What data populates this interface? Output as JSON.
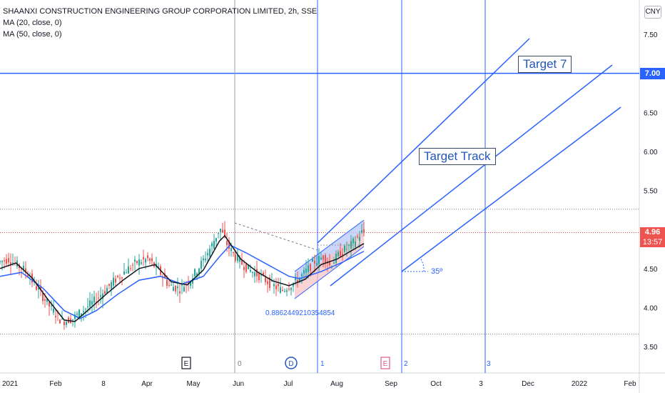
{
  "header": {
    "title": "SHAANXI CONSTRUCTION ENGINEERING GROUP CORPORATION LIMITED, 2h, SSE",
    "indicators": [
      "MA (20, close, 0)",
      "MA (50, close, 0)"
    ],
    "currency": "CNY"
  },
  "colors": {
    "blue": "#2962ff",
    "up": "#26a69a",
    "down": "#ef5350",
    "ma20": "#131722",
    "ma50": "#2962ff",
    "channel_fill": "#b3c3f7",
    "channel_lower_fill": "#f8c2c2",
    "price_label_bg": "#ef5350",
    "target_label_bg": "#2962ff"
  },
  "annotations": {
    "target7": "Target 7",
    "target_track": "Target Track",
    "angle": "35º",
    "fib_ratio": "0.8862449210354854",
    "cycle_labels": [
      "0",
      "1",
      "2",
      "3"
    ],
    "event_markers": [
      "E",
      "D",
      "E"
    ]
  },
  "price_labels": {
    "current_price": "4.96",
    "countdown": "13:57",
    "target_price": "7.00"
  },
  "chart_data": {
    "type": "candlestick",
    "title": "SHAANXI CONSTRUCTION ENGINEERING GROUP CORPORATION LIMITED, 2h, SSE",
    "x_ticks": [
      "2021",
      "Feb",
      "8",
      "Apr",
      "May",
      "Jun",
      "Jul",
      "Aug",
      "Sep",
      "Oct",
      "3",
      "Dec",
      "2022",
      "Feb"
    ],
    "y_ticks": [
      "7.50",
      "7.00",
      "6.50",
      "6.00",
      "5.50",
      "5.00",
      "4.50",
      "4.00",
      "3.50"
    ],
    "ylim": [
      3.2,
      7.75
    ],
    "price_path": [
      {
        "t": 0,
        "p": 4.58
      },
      {
        "t": 2,
        "p": 4.62
      },
      {
        "t": 5,
        "p": 4.48
      },
      {
        "t": 8,
        "p": 4.18
      },
      {
        "t": 10,
        "p": 3.98
      },
      {
        "t": 12,
        "p": 3.82
      },
      {
        "t": 14,
        "p": 3.86
      },
      {
        "t": 16,
        "p": 3.97
      },
      {
        "t": 18,
        "p": 4.08
      },
      {
        "t": 20,
        "p": 4.22
      },
      {
        "t": 22,
        "p": 4.36
      },
      {
        "t": 24,
        "p": 4.48
      },
      {
        "t": 26,
        "p": 4.58
      },
      {
        "t": 28,
        "p": 4.62
      },
      {
        "t": 30,
        "p": 4.48
      },
      {
        "t": 32,
        "p": 4.28
      },
      {
        "t": 34,
        "p": 4.24
      },
      {
        "t": 36,
        "p": 4.36
      },
      {
        "t": 38,
        "p": 4.56
      },
      {
        "t": 40,
        "p": 4.8
      },
      {
        "t": 41.5,
        "p": 5.02
      },
      {
        "t": 43,
        "p": 4.78
      },
      {
        "t": 45,
        "p": 4.6
      },
      {
        "t": 47,
        "p": 4.48
      },
      {
        "t": 49,
        "p": 4.4
      },
      {
        "t": 51,
        "p": 4.3
      },
      {
        "t": 53,
        "p": 4.22
      },
      {
        "t": 55,
        "p": 4.3
      },
      {
        "t": 57,
        "p": 4.42
      },
      {
        "t": 59,
        "p": 4.58
      },
      {
        "t": 61,
        "p": 4.66
      },
      {
        "t": 62,
        "p": 4.54
      },
      {
        "t": 64,
        "p": 4.7
      },
      {
        "t": 66,
        "p": 4.8
      },
      {
        "t": 68,
        "p": 4.96
      }
    ],
    "ma20_path": [
      {
        "t": 0,
        "p": 4.5
      },
      {
        "t": 3,
        "p": 4.57
      },
      {
        "t": 6,
        "p": 4.38
      },
      {
        "t": 9,
        "p": 4.1
      },
      {
        "t": 12,
        "p": 3.84
      },
      {
        "t": 14,
        "p": 3.82
      },
      {
        "t": 17,
        "p": 4.0
      },
      {
        "t": 20,
        "p": 4.18
      },
      {
        "t": 23,
        "p": 4.35
      },
      {
        "t": 26,
        "p": 4.5
      },
      {
        "t": 29,
        "p": 4.55
      },
      {
        "t": 32,
        "p": 4.33
      },
      {
        "t": 35,
        "p": 4.29
      },
      {
        "t": 38,
        "p": 4.48
      },
      {
        "t": 41,
        "p": 4.85
      },
      {
        "t": 42,
        "p": 4.92
      },
      {
        "t": 45,
        "p": 4.62
      },
      {
        "t": 48,
        "p": 4.46
      },
      {
        "t": 51,
        "p": 4.34
      },
      {
        "t": 54,
        "p": 4.28
      },
      {
        "t": 57,
        "p": 4.36
      },
      {
        "t": 60,
        "p": 4.55
      },
      {
        "t": 63,
        "p": 4.62
      },
      {
        "t": 66,
        "p": 4.74
      },
      {
        "t": 68,
        "p": 4.82
      }
    ],
    "ma50_path": [
      {
        "t": 0,
        "p": 4.4
      },
      {
        "t": 4,
        "p": 4.45
      },
      {
        "t": 8,
        "p": 4.25
      },
      {
        "t": 12,
        "p": 3.96
      },
      {
        "t": 15,
        "p": 3.86
      },
      {
        "t": 18,
        "p": 3.96
      },
      {
        "t": 22,
        "p": 4.17
      },
      {
        "t": 26,
        "p": 4.35
      },
      {
        "t": 30,
        "p": 4.4
      },
      {
        "t": 34,
        "p": 4.3
      },
      {
        "t": 38,
        "p": 4.4
      },
      {
        "t": 41,
        "p": 4.65
      },
      {
        "t": 43,
        "p": 4.8
      },
      {
        "t": 46,
        "p": 4.7
      },
      {
        "t": 50,
        "p": 4.55
      },
      {
        "t": 54,
        "p": 4.4
      },
      {
        "t": 56,
        "p": 4.37
      },
      {
        "t": 60,
        "p": 4.46
      },
      {
        "t": 64,
        "p": 4.58
      },
      {
        "t": 68,
        "p": 4.72
      }
    ],
    "horizontal_levels": [
      7.0,
      5.26,
      4.96,
      3.66
    ],
    "grid": false
  }
}
